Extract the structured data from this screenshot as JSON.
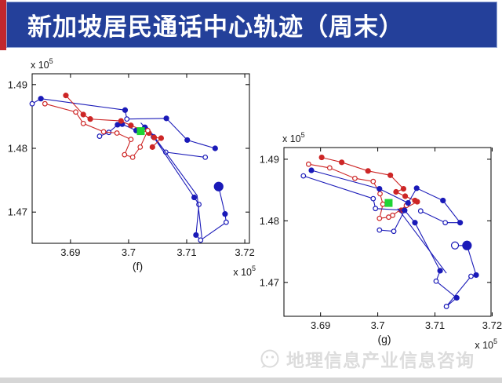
{
  "header": {
    "title": "新加坡居民通话中心轨迹（周末）",
    "bar_color": "#24409a",
    "stripe_color": "#c1272d",
    "text_color": "#ffffff"
  },
  "watermark": {
    "text": "地理信息产业信息咨询",
    "icon": "chat-logo-icon",
    "color": "#dcdcdc"
  },
  "colors": {
    "blue": "#1a1ab8",
    "red": "#cd2626",
    "green": "#1fd435",
    "axis": "#000000"
  },
  "chart_data": [
    {
      "type": "scatter",
      "subplot_label": "(f)",
      "xlim": [
        3.6834,
        3.7208
      ],
      "ylim": [
        1.4651,
        1.4917
      ],
      "x_ticks": [
        {
          "v": 3.69,
          "label": "3.69"
        },
        {
          "v": 3.7,
          "label": "3.7"
        },
        {
          "v": 3.71,
          "label": "3.71"
        },
        {
          "v": 3.72,
          "label": "3.72"
        }
      ],
      "y_ticks": [
        {
          "v": 1.49,
          "label": "1.49"
        },
        {
          "v": 1.48,
          "label": "1.48"
        },
        {
          "v": 1.47,
          "label": "1.47"
        }
      ],
      "axis_multiplier": {
        "text": "x 10",
        "sup": "5"
      },
      "grid": false,
      "series": [
        {
          "name": "blue-trajectory-1",
          "color": "blue",
          "points": [
            [
              3.6834,
              1.487,
              "o"
            ],
            [
              3.6849,
              1.4878,
              "f"
            ],
            [
              3.6994,
              1.486,
              "f"
            ],
            [
              3.6997,
              1.4846,
              "o"
            ],
            [
              3.7065,
              1.4847,
              "f"
            ],
            [
              3.7101,
              1.4813,
              "f"
            ],
            [
              3.7149,
              1.48,
              "f"
            ]
          ]
        },
        {
          "name": "blue-trajectory-2",
          "color": "blue",
          "points": [
            [
              3.695,
              1.4819,
              "o"
            ],
            [
              3.6966,
              1.4825,
              "o"
            ],
            [
              3.6981,
              1.4837,
              "f"
            ],
            [
              3.6989,
              1.4838,
              "f"
            ],
            [
              3.7013,
              1.4828,
              "f"
            ],
            [
              3.7028,
              1.4833,
              "f"
            ],
            [
              3.7043,
              1.4818,
              "f"
            ],
            [
              3.7064,
              1.4794,
              "o"
            ],
            [
              3.7132,
              1.4786,
              "o"
            ]
          ]
        },
        {
          "name": "blue-trajectory-3",
          "color": "blue",
          "points": [
            [
              3.7021,
              1.484,
              "n"
            ],
            [
              3.7043,
              1.4818,
              "n"
            ],
            [
              3.7113,
              1.4723,
              "f"
            ],
            [
              3.7121,
              1.4712,
              "o"
            ],
            [
              3.7116,
              1.4664,
              "f"
            ],
            [
              3.7124,
              1.4656,
              "o"
            ],
            [
              3.7168,
              1.4684,
              "o"
            ],
            [
              3.7166,
              1.4697,
              "f"
            ],
            [
              3.7155,
              1.474,
              "F"
            ]
          ]
        },
        {
          "name": "blue-trajectory-4",
          "color": "blue",
          "points": [
            [
              3.703,
              1.4836,
              "n"
            ],
            [
              3.7118,
              1.4726,
              "n"
            ],
            [
              3.7126,
              1.466,
              "n"
            ]
          ]
        },
        {
          "name": "red-trajectory-1",
          "color": "red",
          "points": [
            [
              3.6892,
              1.4883,
              "f"
            ],
            [
              3.6922,
              1.4853,
              "f"
            ],
            [
              3.6934,
              1.4846,
              "f"
            ],
            [
              3.6987,
              1.4843,
              "f"
            ],
            [
              3.7004,
              1.4836,
              "f"
            ],
            [
              3.7035,
              1.4824,
              "f"
            ],
            [
              3.7044,
              1.4817,
              "f"
            ],
            [
              3.7056,
              1.4816,
              "f"
            ],
            [
              3.7041,
              1.4802,
              "f"
            ]
          ]
        },
        {
          "name": "red-trajectory-2",
          "color": "red",
          "points": [
            [
              3.6856,
              1.487,
              "o"
            ],
            [
              3.6909,
              1.4857,
              "o"
            ],
            [
              3.6922,
              1.4839,
              "o"
            ],
            [
              3.6957,
              1.4826,
              "o"
            ],
            [
              3.698,
              1.4824,
              "o"
            ],
            [
              3.7004,
              1.4814,
              "o"
            ],
            [
              3.6993,
              1.479,
              "o"
            ],
            [
              3.7007,
              1.4786,
              "o"
            ],
            [
              3.702,
              1.4802,
              "o"
            ],
            [
              3.7033,
              1.4828,
              "o"
            ]
          ]
        }
      ],
      "center_marker": {
        "x": 3.7021,
        "y": 1.4827,
        "shape": "square",
        "color": "green"
      }
    },
    {
      "type": "scatter",
      "subplot_label": "(g)",
      "xlim": [
        3.6836,
        3.7198
      ],
      "ylim": [
        1.4645,
        1.4919
      ],
      "x_ticks": [
        {
          "v": 3.69,
          "label": "3.69"
        },
        {
          "v": 3.7,
          "label": "3.7"
        },
        {
          "v": 3.71,
          "label": "3.71"
        },
        {
          "v": 3.72,
          "label": "3.72"
        }
      ],
      "y_ticks": [
        {
          "v": 1.49,
          "label": "1.49"
        },
        {
          "v": 1.48,
          "label": "1.48"
        },
        {
          "v": 1.47,
          "label": "1.47"
        }
      ],
      "axis_multiplier": {
        "text": "x 10",
        "sup": "5"
      },
      "grid": false,
      "series": [
        {
          "name": "red-trajectory-1",
          "color": "red",
          "points": [
            [
              3.6902,
              1.4903,
              "f"
            ],
            [
              3.6937,
              1.4895,
              "f"
            ],
            [
              3.6983,
              1.4881,
              "f"
            ],
            [
              3.7022,
              1.4874,
              "f"
            ],
            [
              3.7045,
              1.4852,
              "f"
            ],
            [
              3.7032,
              1.4847,
              "f"
            ],
            [
              3.7048,
              1.484,
              "f"
            ],
            [
              3.7065,
              1.4833,
              "f"
            ],
            [
              3.7069,
              1.4831,
              "f"
            ],
            [
              3.7041,
              1.4817,
              "f"
            ]
          ]
        },
        {
          "name": "red-trajectory-2",
          "color": "red",
          "points": [
            [
              3.6879,
              1.4892,
              "o"
            ],
            [
              3.6916,
              1.4886,
              "o"
            ],
            [
              3.696,
              1.4869,
              "o"
            ],
            [
              3.6992,
              1.4864,
              "o"
            ],
            [
              3.7004,
              1.4844,
              "o"
            ],
            [
              3.7009,
              1.4827,
              "o"
            ],
            [
              3.7003,
              1.4804,
              "o"
            ],
            [
              3.7019,
              1.4806,
              "o"
            ],
            [
              3.7026,
              1.4809,
              "o"
            ],
            [
              3.705,
              1.4825,
              "o"
            ]
          ]
        },
        {
          "name": "blue-trajectory-1",
          "color": "blue",
          "points": [
            [
              3.6884,
              1.4882,
              "f"
            ],
            [
              3.7003,
              1.4852,
              "f"
            ],
            [
              3.7053,
              1.4829,
              "f"
            ],
            [
              3.7068,
              1.4853,
              "f"
            ],
            [
              3.7114,
              1.4833,
              "f"
            ],
            [
              3.7144,
              1.4797,
              "f"
            ],
            [
              3.7118,
              1.4797,
              "o"
            ],
            [
              3.7075,
              1.4816,
              "o"
            ]
          ]
        },
        {
          "name": "blue-trajectory-2",
          "color": "blue",
          "points": [
            [
              3.687,
              1.4873,
              "o"
            ],
            [
              3.6992,
              1.4836,
              "o"
            ],
            [
              3.6996,
              1.482,
              "o"
            ],
            [
              3.7047,
              1.4817,
              "f"
            ],
            [
              3.7065,
              1.4797,
              "f"
            ],
            [
              3.7109,
              1.4719,
              "f"
            ],
            [
              3.7102,
              1.4702,
              "o"
            ],
            [
              3.7138,
              1.4675,
              "f"
            ],
            [
              3.712,
              1.4661,
              "o"
            ],
            [
              3.7163,
              1.471,
              "o"
            ],
            [
              3.7172,
              1.4712,
              "f"
            ],
            [
              3.7156,
              1.476,
              "F"
            ],
            [
              3.7135,
              1.476,
              "O"
            ]
          ]
        },
        {
          "name": "blue-trajectory-3",
          "color": "blue",
          "points": [
            [
              3.7003,
              1.4785,
              "o"
            ],
            [
              3.7028,
              1.4783,
              "o"
            ],
            [
              3.7047,
              1.4817,
              "n"
            ]
          ]
        },
        {
          "name": "blue-trajectory-4",
          "color": "blue",
          "points": [
            [
              3.7035,
              1.482,
              "n"
            ],
            [
              3.712,
              1.4715,
              "n"
            ]
          ]
        }
      ],
      "center_marker": {
        "x": 3.7019,
        "y": 1.4829,
        "shape": "square",
        "color": "green"
      }
    }
  ]
}
